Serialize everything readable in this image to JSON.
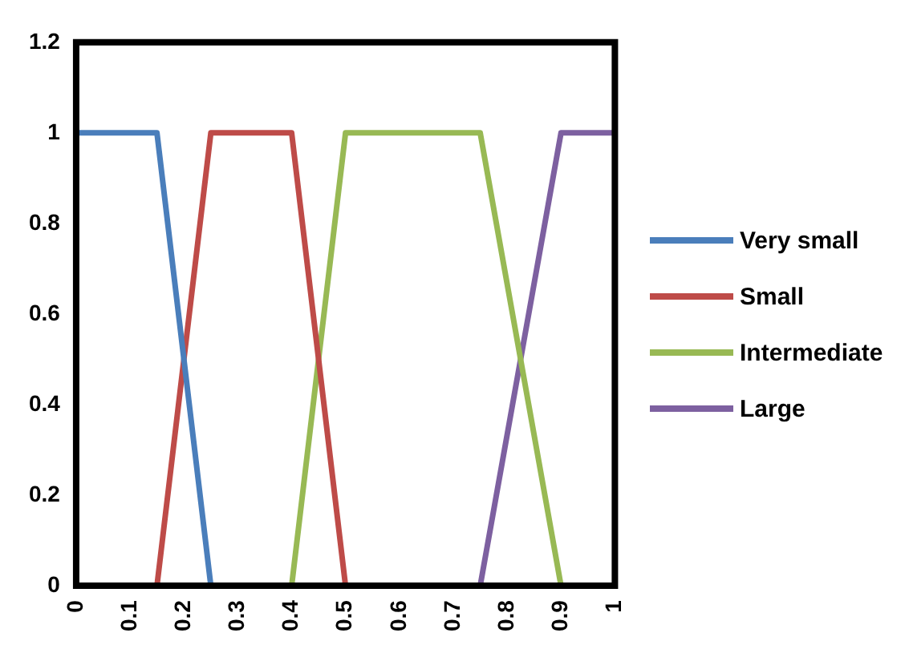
{
  "chart_data": {
    "type": "line",
    "xlim": [
      0,
      1
    ],
    "xticks": [
      0,
      0.1,
      0.2,
      0.3,
      0.4,
      0.5,
      0.6,
      0.7,
      0.8,
      0.9,
      1
    ],
    "ylim": [
      0,
      1.2
    ],
    "yticks": [
      0,
      0.2,
      0.4,
      0.6,
      0.8,
      1,
      1.2
    ],
    "grid": false,
    "legend": "right",
    "marker": "none",
    "line_style": "solid",
    "series": [
      {
        "name": "Very small",
        "color": "#4a7ebb",
        "x": [
          0,
          0.15,
          0.25
        ],
        "values": [
          1,
          1,
          0
        ]
      },
      {
        "name": "Small",
        "color": "#be4b48",
        "x": [
          0.15,
          0.25,
          0.4,
          0.5
        ],
        "values": [
          0,
          1,
          1,
          0
        ]
      },
      {
        "name": "Intermediate",
        "color": "#98b954",
        "x": [
          0.4,
          0.5,
          0.75,
          0.9
        ],
        "values": [
          0,
          1,
          1,
          0
        ]
      },
      {
        "name": "Large",
        "color": "#7d60a0",
        "x": [
          0.75,
          0.9,
          1
        ],
        "values": [
          0,
          1,
          1
        ]
      }
    ]
  }
}
